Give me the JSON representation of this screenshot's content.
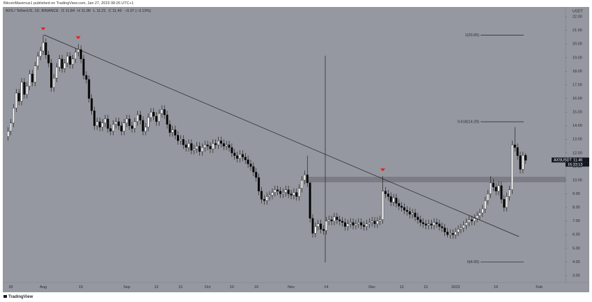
{
  "chart_data": {
    "type": "candlestick",
    "title": "BitcoinMaximus1 published on TradingView.com, Jan 27, 2023 08:26 UTC+1",
    "symbol_legend": "AXS / TetherUS, 1D, BINANCE",
    "ohlc_labels": [
      "O",
      "H",
      "L",
      "C"
    ],
    "change": "−0.37 (−3.13%)",
    "y_axis_label": "USDT",
    "watermark": "TradingView",
    "last_price": {
      "symbol": "AXSUSDT",
      "countdown": "16:33:13"
    },
    "up_color": "#ffffff",
    "down_color": "#000000",
    "background": "#9598a0",
    "categories": [
      null,
      "20",
      null,
      null,
      null,
      null,
      null,
      null,
      null,
      null,
      null,
      null,
      null,
      "Aug",
      null,
      null,
      null,
      null,
      null,
      null,
      null,
      null,
      null,
      null,
      null,
      null,
      null,
      "15",
      null,
      null,
      null,
      null,
      null,
      null,
      null,
      null,
      null,
      null,
      null,
      null,
      null,
      null,
      null,
      null,
      "Sep",
      null,
      null,
      null,
      null,
      null,
      null,
      null,
      null,
      null,
      null,
      "12",
      null,
      null,
      null,
      null,
      null,
      null,
      null,
      null,
      "21",
      null,
      null,
      null,
      null,
      null,
      null,
      null,
      null,
      null,
      "Oct",
      null,
      null,
      null,
      null,
      null,
      null,
      null,
      null,
      "10",
      null,
      null,
      null,
      null,
      null,
      null,
      null,
      null,
      "19",
      null,
      null,
      null,
      null,
      null,
      null,
      null,
      null,
      null,
      null,
      null,
      null,
      "Nov",
      null,
      null,
      null,
      null,
      null,
      null,
      null,
      null,
      null,
      null,
      null,
      null,
      "14",
      null,
      null,
      null,
      null,
      null,
      null,
      null,
      null,
      null,
      null,
      null,
      null,
      null,
      null,
      null,
      null,
      "Dec",
      null,
      null,
      null,
      null,
      null,
      null,
      null,
      null,
      null,
      null,
      "12",
      null,
      null,
      null,
      null,
      null,
      null,
      null,
      null,
      "21",
      null,
      null,
      null,
      null,
      null,
      null,
      null,
      null,
      null,
      null,
      "2023",
      null,
      null,
      null,
      null,
      null,
      null,
      null,
      null,
      null,
      null,
      null,
      null,
      null,
      null,
      "16",
      null,
      null,
      null,
      null,
      null,
      null,
      null,
      null,
      null,
      null,
      null,
      null,
      null,
      null,
      null,
      "Feb"
    ],
    "open": [
      13.2,
      13.6,
      14.2,
      15.3,
      16.4,
      15.8,
      17.2,
      16.3,
      16.9,
      17.8,
      17.2,
      18.4,
      19.1,
      19.5,
      20.1,
      19.2,
      18.6,
      16.8,
      17.5,
      18.3,
      18.9,
      18.2,
      18.6,
      19.1,
      18.5,
      18.9,
      19.4,
      19.6,
      18.9,
      17.7,
      17.4,
      16.0,
      15.1,
      14.0,
      14.3,
      13.9,
      14.2,
      14.5,
      13.8,
      13.6,
      14.1,
      14.3,
      14.0,
      13.6,
      14.2,
      14.5,
      14.0,
      13.8,
      14.3,
      14.8,
      14.4,
      13.6,
      13.9,
      14.6,
      15.0,
      14.7,
      14.3,
      14.9,
      15.2,
      14.8,
      14.1,
      13.5,
      13.7,
      13.3,
      12.9,
      13.0,
      12.6,
      12.4,
      12.7,
      12.2,
      12.3,
      12.5,
      12.1,
      12.4,
      12.6,
      12.5,
      12.3,
      12.7,
      12.6,
      12.9,
      12.7,
      12.5,
      12.6,
      12.4,
      12.0,
      11.8,
      11.6,
      11.9,
      11.7,
      11.5,
      11.2,
      11.0,
      10.6,
      10.2,
      9.2,
      8.6,
      8.5,
      8.8,
      8.9,
      9.1,
      9.3,
      9.2,
      9.0,
      9.1,
      9.3,
      9.0,
      8.9,
      9.1,
      8.8,
      9.4,
      10.0,
      10.4,
      9.8,
      7.2,
      6.1,
      6.6,
      6.8,
      6.4,
      6.3,
      7.0,
      7.1,
      7.0,
      7.3,
      7.1,
      7.0,
      6.9,
      6.6,
      6.8,
      6.9,
      6.7,
      6.8,
      6.9,
      6.7,
      6.6,
      6.8,
      6.9,
      7.0,
      6.8,
      7.0,
      7.1,
      9.2,
      9.0,
      8.8,
      8.4,
      8.7,
      8.3,
      8.1,
      8.0,
      7.8,
      7.7,
      7.5,
      7.6,
      7.3,
      7.1,
      6.9,
      6.8,
      6.7,
      6.8,
      6.7,
      6.9,
      6.8,
      6.6,
      6.5,
      6.2,
      6.0,
      6.1,
      6.0,
      6.2,
      6.4,
      6.5,
      6.7,
      6.9,
      7.1,
      7.0,
      7.2,
      7.4,
      7.6,
      7.9,
      8.5,
      9.0,
      9.8,
      9.5,
      9.2,
      9.6,
      8.6,
      8.0,
      8.8,
      9.3,
      12.6,
      12.4,
      11.8,
      10.8,
      11.84,
      null,
      null,
      null,
      null,
      null
    ],
    "high": [
      13.9,
      14.5,
      15.6,
      16.7,
      16.7,
      17.5,
      17.5,
      17.2,
      18.1,
      18.1,
      18.7,
      19.4,
      19.8,
      20.65,
      20.4,
      19.5,
      18.9,
      17.8,
      18.6,
      19.2,
      19.2,
      18.9,
      19.4,
      19.4,
      19.2,
      19.7,
      20.0,
      19.9,
      19.2,
      18.0,
      17.7,
      16.3,
      15.4,
      14.6,
      14.6,
      14.5,
      14.8,
      14.8,
      14.1,
      14.4,
      14.6,
      14.6,
      14.3,
      14.5,
      14.8,
      14.8,
      14.3,
      14.6,
      15.1,
      15.1,
      14.7,
      14.2,
      14.9,
      15.3,
      15.3,
      15.0,
      15.2,
      15.5,
      15.5,
      15.1,
      14.4,
      14.0,
      14.0,
      13.6,
      13.3,
      13.3,
      12.9,
      13.0,
      13.0,
      12.6,
      12.8,
      12.8,
      12.7,
      12.9,
      12.9,
      12.8,
      13.0,
      13.0,
      13.2,
      13.2,
      13.0,
      12.9,
      12.9,
      12.7,
      12.3,
      12.1,
      12.2,
      12.2,
      12.0,
      11.8,
      11.5,
      11.3,
      10.9,
      10.5,
      9.5,
      8.9,
      9.1,
      9.2,
      9.4,
      9.6,
      9.6,
      9.5,
      9.4,
      9.6,
      9.6,
      9.3,
      9.4,
      9.4,
      9.7,
      10.3,
      10.7,
      11.8,
      9.9,
      7.5,
      6.9,
      7.1,
      7.1,
      6.7,
      7.3,
      7.4,
      7.4,
      7.6,
      7.6,
      7.4,
      7.3,
      7.2,
      7.1,
      7.2,
      7.2,
      7.1,
      7.2,
      7.2,
      7.0,
      7.1,
      7.2,
      7.3,
      7.3,
      7.3,
      7.4,
      10.3,
      9.5,
      9.3,
      9.1,
      9.0,
      9.0,
      8.6,
      8.4,
      8.3,
      8.1,
      8.0,
      7.9,
      7.9,
      7.6,
      7.4,
      7.2,
      7.1,
      7.1,
      7.1,
      7.2,
      7.2,
      7.1,
      6.9,
      6.8,
      6.5,
      6.4,
      6.4,
      6.5,
      6.7,
      6.8,
      7.0,
      7.2,
      7.4,
      7.4,
      7.5,
      7.7,
      7.9,
      8.2,
      8.8,
      9.3,
      10.3,
      10.1,
      9.8,
      9.9,
      9.9,
      8.9,
      9.1,
      9.6,
      12.9,
      13.9,
      12.7,
      12.1,
      12.1,
      11.98,
      null,
      null,
      null,
      null,
      null
    ],
    "low": [
      12.9,
      13.3,
      13.9,
      15.0,
      15.5,
      15.5,
      16.0,
      16.0,
      16.6,
      16.9,
      16.9,
      18.1,
      18.8,
      19.2,
      18.9,
      18.3,
      16.5,
      16.5,
      17.2,
      18.0,
      17.9,
      17.9,
      18.3,
      18.2,
      18.2,
      18.6,
      19.1,
      18.6,
      17.4,
      17.1,
      15.7,
      14.8,
      13.7,
      13.7,
      13.6,
      13.6,
      13.9,
      13.5,
      13.3,
      13.3,
      13.8,
      13.7,
      13.3,
      13.3,
      13.9,
      13.7,
      13.5,
      13.5,
      14.0,
      14.1,
      13.3,
      13.3,
      13.6,
      14.3,
      14.4,
      14.0,
      14.0,
      14.6,
      14.5,
      13.8,
      13.2,
      13.2,
      13.0,
      12.6,
      12.6,
      12.3,
      12.1,
      12.1,
      11.9,
      11.9,
      12.0,
      11.8,
      11.8,
      12.1,
      12.2,
      12.0,
      12.0,
      12.3,
      12.3,
      12.4,
      12.2,
      12.2,
      12.1,
      11.7,
      11.5,
      11.3,
      11.3,
      11.4,
      11.2,
      10.9,
      10.7,
      10.3,
      9.9,
      8.9,
      8.3,
      8.2,
      8.2,
      8.5,
      8.6,
      8.8,
      8.9,
      8.7,
      8.7,
      8.8,
      8.7,
      8.6,
      8.6,
      8.5,
      8.5,
      9.1,
      9.7,
      9.5,
      6.9,
      5.8,
      5.8,
      6.3,
      6.1,
      6.0,
      6.0,
      6.7,
      6.7,
      6.7,
      6.8,
      6.7,
      6.6,
      6.3,
      6.3,
      6.5,
      6.4,
      6.4,
      6.5,
      6.4,
      6.3,
      6.3,
      6.5,
      6.6,
      6.5,
      6.5,
      6.7,
      6.8,
      8.7,
      8.5,
      8.1,
      8.1,
      8.0,
      7.8,
      7.7,
      7.5,
      7.4,
      7.2,
      7.2,
      7.0,
      6.8,
      6.6,
      6.5,
      6.4,
      6.4,
      6.4,
      6.4,
      6.5,
      6.3,
      6.2,
      5.9,
      5.8,
      5.7,
      5.7,
      5.7,
      5.9,
      6.1,
      6.2,
      6.4,
      6.6,
      6.7,
      6.7,
      6.9,
      7.1,
      7.3,
      7.6,
      8.2,
      8.7,
      9.2,
      8.9,
      8.9,
      8.3,
      7.7,
      7.7,
      8.5,
      9.0,
      12.1,
      11.5,
      10.5,
      10.5,
      11.21,
      null,
      null,
      null,
      null,
      null
    ],
    "close": [
      13.6,
      14.2,
      15.3,
      16.4,
      15.8,
      17.2,
      16.3,
      16.9,
      17.8,
      17.2,
      18.4,
      19.1,
      19.5,
      20.1,
      19.2,
      18.6,
      16.8,
      17.5,
      18.3,
      18.9,
      18.2,
      18.6,
      19.1,
      18.5,
      18.9,
      19.4,
      19.6,
      18.9,
      17.7,
      17.4,
      16.0,
      15.1,
      14.0,
      14.3,
      13.9,
      14.2,
      14.5,
      13.8,
      13.6,
      14.1,
      14.3,
      14.0,
      13.6,
      14.2,
      14.5,
      14.0,
      13.8,
      14.3,
      14.8,
      14.4,
      13.6,
      13.9,
      14.6,
      15.0,
      14.7,
      14.3,
      14.9,
      15.2,
      14.8,
      14.1,
      13.5,
      13.7,
      13.3,
      12.9,
      13.0,
      12.6,
      12.4,
      12.7,
      12.2,
      12.3,
      12.5,
      12.1,
      12.4,
      12.6,
      12.5,
      12.3,
      12.7,
      12.6,
      12.9,
      12.7,
      12.5,
      12.6,
      12.4,
      12.0,
      11.8,
      11.6,
      11.9,
      11.7,
      11.5,
      11.2,
      11.0,
      10.6,
      10.2,
      9.2,
      8.6,
      8.5,
      8.8,
      8.9,
      9.1,
      9.3,
      9.2,
      9.0,
      9.1,
      9.3,
      9.0,
      8.9,
      9.1,
      8.8,
      9.4,
      10.0,
      10.4,
      9.8,
      7.2,
      6.1,
      6.6,
      6.8,
      6.4,
      6.3,
      7.0,
      7.1,
      7.0,
      7.3,
      7.1,
      7.0,
      6.9,
      6.6,
      6.8,
      6.9,
      6.7,
      6.8,
      6.9,
      6.7,
      6.6,
      6.8,
      6.9,
      7.0,
      6.8,
      7.0,
      7.1,
      9.2,
      9.0,
      8.8,
      8.4,
      8.7,
      8.3,
      8.1,
      8.0,
      7.8,
      7.7,
      7.5,
      7.6,
      7.3,
      7.1,
      6.9,
      6.8,
      6.7,
      6.8,
      6.7,
      6.9,
      6.8,
      6.6,
      6.5,
      6.2,
      6.0,
      6.1,
      6.0,
      6.2,
      6.4,
      6.5,
      6.7,
      6.9,
      7.1,
      7.0,
      7.2,
      7.4,
      7.6,
      7.9,
      8.5,
      9.0,
      9.8,
      9.5,
      9.2,
      9.6,
      8.6,
      8.0,
      8.8,
      9.3,
      12.6,
      12.4,
      11.8,
      10.8,
      11.83,
      11.46,
      null,
      null,
      null,
      null,
      null
    ],
    "ylim": [
      2.49,
      22.72
    ],
    "yticks": [
      {
        "value": 3,
        "label": "3.00"
      },
      {
        "value": 4,
        "label": "4.00"
      },
      {
        "value": 5,
        "label": "5.00"
      },
      {
        "value": 6,
        "label": "6.00"
      },
      {
        "value": 7,
        "label": "7.00"
      },
      {
        "value": 8,
        "label": "8.00"
      },
      {
        "value": 9,
        "label": "9.00"
      },
      {
        "value": 10,
        "label": "10.00"
      },
      {
        "value": 11,
        "label": "11.00"
      },
      {
        "value": 12,
        "label": "12.00"
      },
      {
        "value": 13,
        "label": "13.00"
      },
      {
        "value": 14,
        "label": "14.00"
      },
      {
        "value": 15,
        "label": "15.00"
      },
      {
        "value": 16,
        "label": "16.00"
      },
      {
        "value": 17,
        "label": "17.00"
      },
      {
        "value": 18,
        "label": "18.00"
      },
      {
        "value": 19,
        "label": "19.00"
      },
      {
        "value": 20,
        "label": "20.00"
      },
      {
        "value": 21,
        "label": "21.00"
      },
      {
        "value": 22,
        "label": "22.00"
      }
    ],
    "fib_levels": [
      {
        "value": 20.65,
        "label": "1(20.65)"
      },
      {
        "value": 14.29,
        "label": "0.618(14.29)"
      },
      {
        "value": 4,
        "label": "0(4.00)"
      }
    ]
  }
}
